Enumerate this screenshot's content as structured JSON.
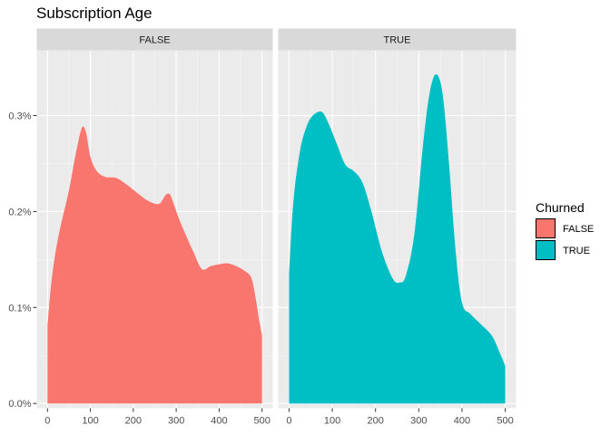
{
  "chart_data": {
    "type": "area",
    "title": "Subscription Age",
    "xlabel": "",
    "ylabel": "",
    "x_ticks": [
      0,
      100,
      200,
      300,
      400,
      500
    ],
    "y_ticks": [
      0,
      0.001,
      0.002,
      0.003
    ],
    "y_tick_labels": [
      "0.0%",
      "0.1%",
      "0.2%",
      "0.3%"
    ],
    "xlim": [
      -25,
      525
    ],
    "ylim": [
      -5e-05,
      0.00368
    ],
    "grid": true,
    "legend": {
      "title": "Churned",
      "position": "right",
      "entries": [
        "FALSE",
        "TRUE"
      ]
    },
    "facets": [
      {
        "label": "FALSE",
        "fill": "#F8766D",
        "x": [
          0,
          10,
          25,
          50,
          65,
          80,
          90,
          100,
          115,
          135,
          160,
          185,
          210,
          235,
          260,
          275,
          285,
          295,
          305,
          320,
          340,
          360,
          380,
          400,
          420,
          440,
          460,
          475,
          485,
          492,
          500
        ],
        "y": [
          0.00081,
          0.0013,
          0.00173,
          0.00222,
          0.00258,
          0.00287,
          0.00282,
          0.00257,
          0.00242,
          0.00236,
          0.00235,
          0.00228,
          0.00219,
          0.00211,
          0.00208,
          0.00217,
          0.00218,
          0.00207,
          0.00194,
          0.00178,
          0.00158,
          0.0014,
          0.00143,
          0.00145,
          0.00146,
          0.00143,
          0.00138,
          0.00131,
          0.0011,
          0.0009,
          0.00071
        ]
      },
      {
        "label": "TRUE",
        "fill": "#00BFC4",
        "x": [
          0,
          10,
          25,
          40,
          55,
          75,
          90,
          110,
          130,
          150,
          170,
          190,
          215,
          240,
          255,
          270,
          290,
          310,
          325,
          340,
          355,
          370,
          385,
          400,
          420,
          445,
          470,
          490,
          500
        ],
        "y": [
          0.00135,
          0.0021,
          0.00262,
          0.00288,
          0.003,
          0.00304,
          0.00293,
          0.00271,
          0.00249,
          0.00242,
          0.0023,
          0.00201,
          0.00158,
          0.0013,
          0.00126,
          0.00133,
          0.00177,
          0.0027,
          0.00323,
          0.00343,
          0.00323,
          0.0025,
          0.0016,
          0.00105,
          0.00093,
          0.00082,
          0.0007,
          0.0005,
          0.00039
        ]
      }
    ]
  }
}
